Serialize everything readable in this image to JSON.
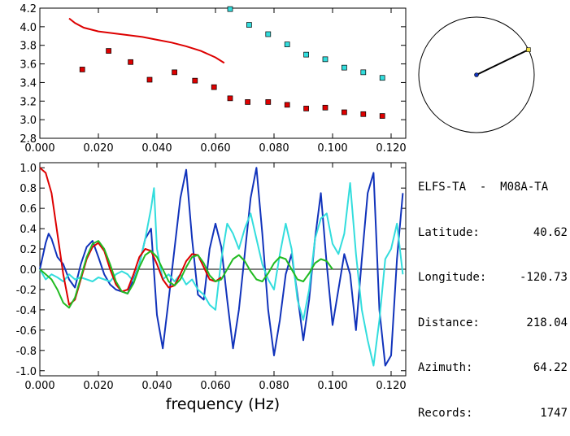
{
  "top_chart": {
    "chart_data": {
      "type": "scatter",
      "xlim": [
        0.0,
        0.125
      ],
      "ylim": [
        2.8,
        4.2
      ],
      "x_ticks": [
        "0.000",
        "0.020",
        "0.040",
        "0.060",
        "0.080",
        "0.100",
        "0.120"
      ],
      "y_ticks": [
        "2.8",
        "3.0",
        "3.2",
        "3.4",
        "3.6",
        "3.8",
        "4.0",
        "4.2"
      ],
      "series": [
        {
          "kind": "line",
          "color": "#dd0000",
          "x": [
            0.01,
            0.012,
            0.015,
            0.02,
            0.025,
            0.03,
            0.035,
            0.04,
            0.045,
            0.05,
            0.055,
            0.06,
            0.063
          ],
          "y": [
            4.09,
            4.04,
            3.99,
            3.95,
            3.93,
            3.91,
            3.89,
            3.86,
            3.83,
            3.79,
            3.74,
            3.67,
            3.61
          ]
        },
        {
          "kind": "squares",
          "color": "#dd0000",
          "x": [
            0.0145,
            0.0235,
            0.031,
            0.0375,
            0.046,
            0.053,
            0.0595,
            0.065,
            0.071,
            0.078,
            0.0845,
            0.091,
            0.0975,
            0.104,
            0.1105,
            0.117
          ],
          "y": [
            3.54,
            3.74,
            3.62,
            3.43,
            3.51,
            3.42,
            3.35,
            3.23,
            3.19,
            3.19,
            3.16,
            3.12,
            3.13,
            3.08,
            3.06,
            3.04
          ]
        },
        {
          "kind": "squares",
          "color": "#33dddd",
          "x": [
            0.065,
            0.0715,
            0.078,
            0.0845,
            0.091,
            0.0975,
            0.104,
            0.1105,
            0.117
          ],
          "y": [
            4.19,
            4.02,
            3.92,
            3.81,
            3.7,
            3.65,
            3.56,
            3.51,
            3.45
          ]
        }
      ]
    }
  },
  "bottom_chart": {
    "chart_data": {
      "type": "line",
      "xlabel": "frequency (Hz)",
      "xlim": [
        0.0,
        0.125
      ],
      "ylim": [
        -1.05,
        1.05
      ],
      "x_ticks": [
        "0.000",
        "0.020",
        "0.040",
        "0.060",
        "0.080",
        "0.100",
        "0.120"
      ],
      "y_ticks": [
        "1.0",
        "0.8",
        "0.6",
        "0.4",
        "0.2",
        "0.0",
        "-0.2",
        "-0.4",
        "-0.6",
        "-0.8",
        "-1.0"
      ],
      "series": [
        {
          "color": "#1133bb",
          "x": [
            0.0,
            0.002,
            0.003,
            0.004,
            0.006,
            0.008,
            0.01,
            0.012,
            0.014,
            0.016,
            0.018,
            0.02,
            0.022,
            0.024,
            0.026,
            0.028,
            0.03,
            0.032,
            0.034,
            0.036,
            0.038,
            0.04,
            0.042,
            0.044,
            0.046,
            0.048,
            0.05,
            0.052,
            0.054,
            0.056,
            0.058,
            0.06,
            0.062,
            0.064,
            0.066,
            0.068,
            0.07,
            0.072,
            0.074,
            0.076,
            0.078,
            0.08,
            0.082,
            0.084,
            0.086,
            0.088,
            0.09,
            0.092,
            0.094,
            0.096,
            0.098,
            0.1,
            0.102,
            0.104,
            0.106,
            0.108,
            0.11,
            0.112,
            0.114,
            0.116,
            0.118,
            0.12,
            0.122,
            0.124
          ],
          "y": [
            0.0,
            0.26,
            0.35,
            0.3,
            0.12,
            0.05,
            -0.1,
            -0.18,
            0.05,
            0.22,
            0.28,
            0.12,
            -0.05,
            -0.15,
            -0.2,
            -0.22,
            -0.24,
            -0.1,
            0.05,
            0.3,
            0.4,
            -0.45,
            -0.78,
            -0.3,
            0.2,
            0.7,
            0.98,
            0.3,
            -0.25,
            -0.3,
            0.2,
            0.45,
            0.22,
            -0.3,
            -0.78,
            -0.4,
            0.15,
            0.7,
            1.0,
            0.35,
            -0.4,
            -0.85,
            -0.5,
            -0.05,
            0.15,
            -0.25,
            -0.7,
            -0.3,
            0.3,
            0.75,
            0.05,
            -0.55,
            -0.2,
            0.15,
            -0.05,
            -0.6,
            0.1,
            0.75,
            0.95,
            -0.4,
            -0.95,
            -0.85,
            0.1,
            0.75
          ]
        },
        {
          "color": "#33dddd",
          "x": [
            0.0,
            0.002,
            0.004,
            0.006,
            0.008,
            0.01,
            0.012,
            0.014,
            0.016,
            0.018,
            0.02,
            0.022,
            0.024,
            0.026,
            0.028,
            0.03,
            0.032,
            0.034,
            0.036,
            0.038,
            0.039,
            0.04,
            0.042,
            0.044,
            0.046,
            0.048,
            0.05,
            0.052,
            0.054,
            0.056,
            0.058,
            0.06,
            0.062,
            0.064,
            0.066,
            0.068,
            0.07,
            0.072,
            0.074,
            0.076,
            0.078,
            0.08,
            0.082,
            0.084,
            0.086,
            0.088,
            0.09,
            0.092,
            0.094,
            0.096,
            0.098,
            0.1,
            0.102,
            0.104,
            0.106,
            0.108,
            0.11,
            0.112,
            0.114,
            0.116,
            0.118,
            0.12,
            0.122,
            0.124
          ],
          "y": [
            0.0,
            -0.1,
            -0.05,
            -0.08,
            -0.12,
            -0.05,
            -0.1,
            -0.08,
            -0.1,
            -0.12,
            -0.08,
            -0.1,
            -0.12,
            -0.05,
            -0.02,
            -0.05,
            -0.12,
            0.05,
            0.3,
            0.6,
            0.8,
            0.2,
            -0.1,
            -0.05,
            -0.12,
            -0.05,
            -0.15,
            -0.1,
            -0.2,
            -0.25,
            -0.35,
            -0.4,
            0.1,
            0.45,
            0.35,
            0.2,
            0.4,
            0.55,
            0.3,
            0.05,
            -0.1,
            -0.2,
            0.15,
            0.45,
            0.2,
            -0.3,
            -0.5,
            -0.2,
            0.3,
            0.5,
            0.55,
            0.25,
            0.15,
            0.35,
            0.85,
            0.15,
            -0.4,
            -0.7,
            -0.95,
            -0.5,
            0.1,
            0.2,
            0.45,
            -0.05
          ]
        },
        {
          "color": "#dd0000",
          "x": [
            0.0,
            0.002,
            0.004,
            0.006,
            0.008,
            0.01,
            0.012,
            0.014,
            0.016,
            0.018,
            0.02,
            0.022,
            0.024,
            0.026,
            0.028,
            0.03,
            0.032,
            0.034,
            0.036,
            0.038,
            0.04,
            0.042,
            0.044,
            0.046,
            0.048,
            0.05,
            0.052,
            0.054,
            0.056,
            0.058,
            0.06,
            0.062
          ],
          "y": [
            1.0,
            0.95,
            0.75,
            0.35,
            -0.05,
            -0.35,
            -0.3,
            -0.1,
            0.1,
            0.22,
            0.26,
            0.18,
            0.0,
            -0.15,
            -0.22,
            -0.2,
            -0.05,
            0.12,
            0.2,
            0.18,
            0.05,
            -0.1,
            -0.18,
            -0.16,
            -0.05,
            0.08,
            0.15,
            0.14,
            0.02,
            -0.1,
            -0.12,
            -0.08
          ]
        },
        {
          "color": "#22bb22",
          "x": [
            0.0,
            0.002,
            0.004,
            0.006,
            0.008,
            0.01,
            0.012,
            0.014,
            0.016,
            0.018,
            0.02,
            0.022,
            0.024,
            0.026,
            0.028,
            0.03,
            0.032,
            0.034,
            0.036,
            0.038,
            0.04,
            0.042,
            0.044,
            0.046,
            0.048,
            0.05,
            0.052,
            0.054,
            0.056,
            0.058,
            0.06,
            0.062,
            0.064,
            0.066,
            0.068,
            0.07,
            0.072,
            0.074,
            0.076,
            0.078,
            0.08,
            0.082,
            0.084,
            0.086,
            0.088,
            0.09,
            0.092,
            0.094,
            0.096,
            0.098,
            0.1
          ],
          "y": [
            0.0,
            -0.05,
            -0.1,
            -0.2,
            -0.33,
            -0.38,
            -0.28,
            -0.08,
            0.12,
            0.25,
            0.28,
            0.2,
            0.05,
            -0.12,
            -0.22,
            -0.24,
            -0.14,
            0.02,
            0.14,
            0.18,
            0.12,
            0.0,
            -0.12,
            -0.16,
            -0.1,
            0.02,
            0.12,
            0.14,
            0.06,
            -0.06,
            -0.12,
            -0.1,
            0.0,
            0.1,
            0.14,
            0.08,
            -0.02,
            -0.1,
            -0.12,
            -0.04,
            0.06,
            0.12,
            0.1,
            0.0,
            -0.1,
            -0.12,
            -0.04,
            0.06,
            0.1,
            0.08,
            0.0
          ]
        }
      ]
    }
  },
  "compass": {
    "azimuth_deg": 64.22,
    "colors": {
      "line": "#000000",
      "center": "#1133bb",
      "tip": "#eedd44"
    }
  },
  "info": {
    "title": "ELFS-TA  -  M08A-TA",
    "rows": [
      {
        "key": "Latitude:",
        "value": "40.62"
      },
      {
        "key": "Longitude:",
        "value": "-120.73"
      },
      {
        "key": "Distance:",
        "value": "218.04"
      },
      {
        "key": "Azimuth:",
        "value": "64.22"
      },
      {
        "key": "Records:",
        "value": "1747"
      }
    ]
  }
}
